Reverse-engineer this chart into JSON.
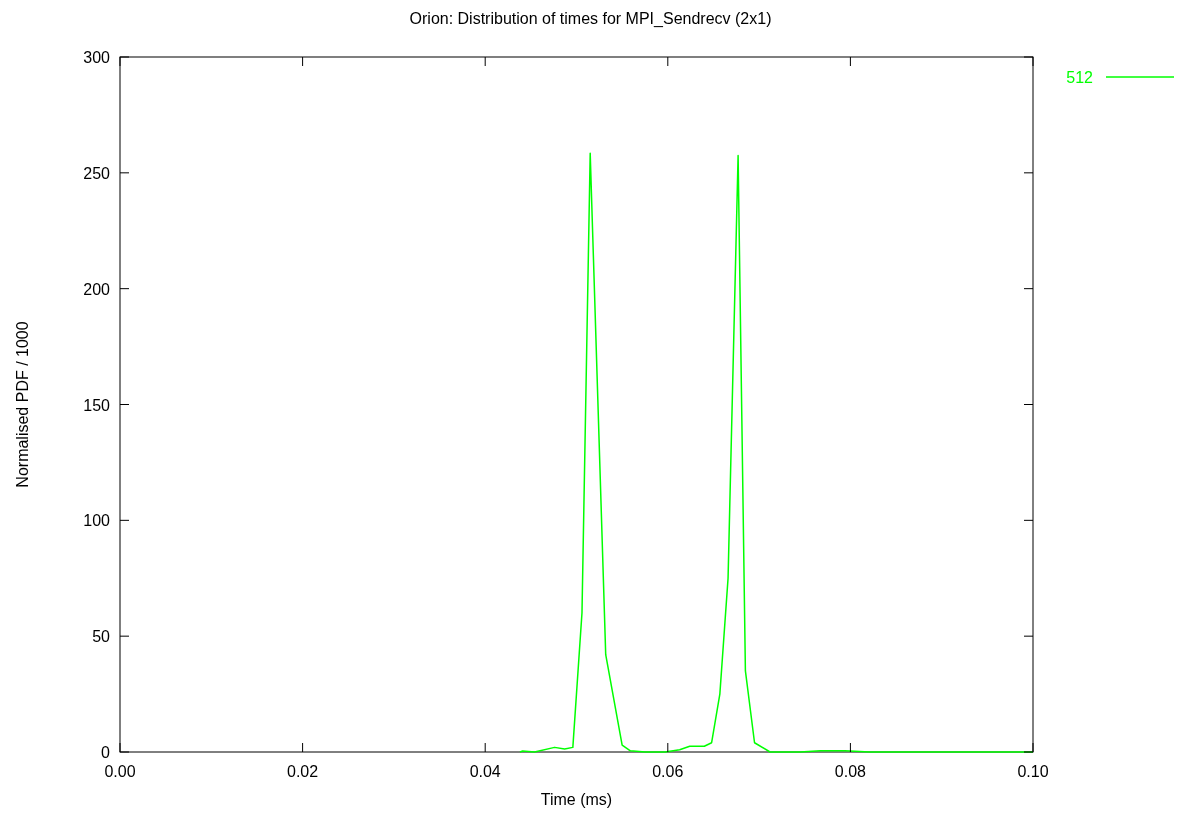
{
  "chart_data": {
    "type": "line",
    "title": "Orion: Distribution of times for MPI_Sendrecv (2x1)",
    "xlabel": "Time (ms)",
    "ylabel": "Normalised PDF / 1000",
    "xlim": [
      0,
      0.1
    ],
    "ylim": [
      0,
      300
    ],
    "xticks": [
      {
        "value": 0,
        "label": "0.00"
      },
      {
        "value": 0.02,
        "label": "0.02"
      },
      {
        "value": 0.04,
        "label": "0.04"
      },
      {
        "value": 0.06,
        "label": "0.06"
      },
      {
        "value": 0.08,
        "label": "0.08"
      },
      {
        "value": 0.1,
        "label": "0.10"
      }
    ],
    "yticks": [
      0,
      50,
      100,
      150,
      200,
      250,
      300
    ],
    "grid": false,
    "legend": "top right",
    "marker": "none",
    "line_style": "solid",
    "series": [
      {
        "name": "512",
        "color": "#00ff00",
        "x": [
          0.0438,
          0.0441,
          0.0454,
          0.0476,
          0.0487,
          0.0496,
          0.0506,
          0.0515,
          0.0532,
          0.055,
          0.0559,
          0.0575,
          0.0597,
          0.0613,
          0.0624,
          0.064,
          0.0648,
          0.0657,
          0.0666,
          0.0677,
          0.0685,
          0.0695,
          0.0712,
          0.0745,
          0.0767,
          0.0794,
          0.0821,
          0.1
        ],
        "values": [
          0,
          0.4,
          0,
          2,
          1.3,
          2,
          60,
          258.5,
          42,
          3,
          0.5,
          0,
          0,
          1,
          2.5,
          2.5,
          4,
          25,
          75,
          257.5,
          35,
          4,
          0,
          0,
          0.5,
          0.5,
          0,
          0
        ]
      }
    ]
  }
}
